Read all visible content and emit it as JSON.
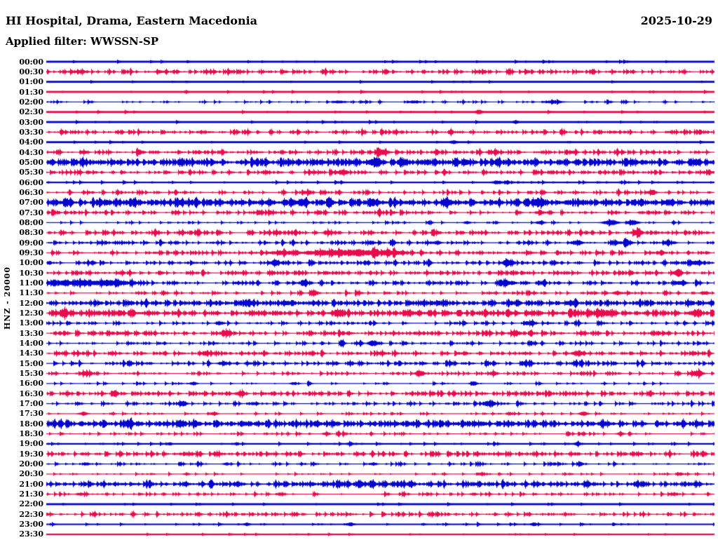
{
  "header": {
    "station_title": "HI Hospital, Drama, Eastern Macedonia",
    "date": "2025-10-29",
    "filter_label": "Applied filter: WWSSN-SP"
  },
  "axis": {
    "channel_label": "HNZ - 20000"
  },
  "colors": {
    "background": "#ffffff",
    "text": "#000000",
    "trace_blue": "#0202cf",
    "trace_red": "#e80a4a"
  },
  "chart_data": {
    "type": "helicorder_seismogram",
    "minutes_per_row": 30,
    "first_row_time": "00:00",
    "last_row_time": "23:30",
    "row_color_legend": {
      "B": "blue",
      "R": "red"
    },
    "row_fields": {
      "t": "start time",
      "c": "trace color",
      "b": "baseline half-thickness px",
      "d": "noise spike density 0-1",
      "s": "spike amplitude px",
      "e": "bursts as [position-fraction, amplitude-px, width-fraction]"
    },
    "rows": [
      {
        "t": "00:00",
        "c": "B",
        "b": 1.4,
        "d": 0.02,
        "s": 1.0,
        "e": []
      },
      {
        "t": "00:30",
        "c": "R",
        "b": 0.6,
        "d": 0.3,
        "s": 2.0,
        "e": [
          [
            0.05,
            1.5,
            0.01
          ],
          [
            0.17,
            1.5,
            0.008
          ]
        ]
      },
      {
        "t": "01:00",
        "c": "B",
        "b": 1.4,
        "d": 0.02,
        "s": 1.0,
        "e": []
      },
      {
        "t": "01:30",
        "c": "R",
        "b": 1.4,
        "d": 0.02,
        "s": 1.0,
        "e": []
      },
      {
        "t": "02:00",
        "c": "B",
        "b": 0.55,
        "d": 0.15,
        "s": 1.6,
        "e": [
          [
            0.44,
            1.5,
            0.01
          ],
          [
            0.55,
            2.0,
            0.008
          ],
          [
            0.76,
            2.0,
            0.012
          ]
        ]
      },
      {
        "t": "02:30",
        "c": "R",
        "b": 1.4,
        "d": 0.02,
        "s": 1.0,
        "e": [
          [
            0.648,
            2.5,
            0.004
          ]
        ]
      },
      {
        "t": "03:00",
        "c": "B",
        "b": 1.4,
        "d": 0.02,
        "s": 1.0,
        "e": [
          [
            0.703,
            1.5,
            0.003
          ]
        ]
      },
      {
        "t": "03:30",
        "c": "R",
        "b": 0.6,
        "d": 0.3,
        "s": 2.0,
        "e": []
      },
      {
        "t": "04:00",
        "c": "B",
        "b": 1.4,
        "d": 0.02,
        "s": 1.0,
        "e": [
          [
            0.61,
            1.5,
            0.004
          ]
        ]
      },
      {
        "t": "04:30",
        "c": "R",
        "b": 0.6,
        "d": 0.3,
        "s": 2.0,
        "e": [
          [
            0.14,
            2.5,
            0.005
          ],
          [
            0.5,
            4.0,
            0.008
          ],
          [
            0.585,
            2.5,
            0.005
          ],
          [
            0.665,
            2.5,
            0.005
          ],
          [
            0.79,
            2.5,
            0.005
          ]
        ]
      },
      {
        "t": "05:00",
        "c": "B",
        "b": 0.9,
        "d": 0.6,
        "s": 2.4,
        "e": [
          [
            0.49,
            3.0,
            0.01
          ]
        ]
      },
      {
        "t": "05:30",
        "c": "R",
        "b": 0.6,
        "d": 0.3,
        "s": 2.0,
        "e": [
          [
            0.445,
            3.5,
            0.008
          ]
        ]
      },
      {
        "t": "06:00",
        "c": "B",
        "b": 1.1,
        "d": 0.06,
        "s": 1.4,
        "e": [
          [
            0.675,
            2.0,
            0.006
          ],
          [
            0.69,
            2.0,
            0.004
          ]
        ]
      },
      {
        "t": "06:30",
        "c": "R",
        "b": 0.6,
        "d": 0.22,
        "s": 2.0,
        "e": [
          [
            0.393,
            2.5,
            0.005
          ],
          [
            0.907,
            3.5,
            0.006
          ]
        ]
      },
      {
        "t": "07:00",
        "c": "B",
        "b": 0.9,
        "d": 0.6,
        "s": 2.4,
        "e": [
          [
            0.383,
            3.5,
            0.008
          ],
          [
            0.49,
            3.5,
            0.006
          ],
          [
            0.6,
            3.0,
            0.006
          ],
          [
            0.74,
            3.5,
            0.007
          ]
        ]
      },
      {
        "t": "07:30",
        "c": "R",
        "b": 0.6,
        "d": 0.3,
        "s": 2.0,
        "e": [
          [
            0.32,
            2.5,
            0.006
          ],
          [
            0.74,
            2.5,
            0.006
          ]
        ]
      },
      {
        "t": "08:00",
        "c": "B",
        "b": 0.6,
        "d": 0.1,
        "s": 1.6,
        "e": [
          [
            0.63,
            2.0,
            0.005
          ],
          [
            0.74,
            2.5,
            0.006
          ],
          [
            0.845,
            4.0,
            0.01
          ],
          [
            0.878,
            4.0,
            0.008
          ]
        ]
      },
      {
        "t": "08:30",
        "c": "R",
        "b": 0.6,
        "d": 0.33,
        "s": 2.0,
        "e": [
          [
            0.42,
            2.5,
            0.006
          ],
          [
            0.885,
            5.0,
            0.007
          ]
        ]
      },
      {
        "t": "09:00",
        "c": "B",
        "b": 0.6,
        "d": 0.25,
        "s": 2.0,
        "e": [
          [
            0.585,
            2.5,
            0.006
          ],
          [
            0.795,
            3.0,
            0.008
          ],
          [
            0.87,
            3.0,
            0.008
          ],
          [
            0.93,
            2.5,
            0.005
          ]
        ]
      },
      {
        "t": "09:30",
        "c": "R",
        "b": 0.6,
        "d": 0.3,
        "s": 2.0,
        "e": [
          [
            0.355,
            2.5,
            0.02
          ],
          [
            0.425,
            3.2,
            0.035
          ],
          [
            0.475,
            3.6,
            0.03
          ],
          [
            0.52,
            3.0,
            0.02
          ],
          [
            0.92,
            2.5,
            0.006
          ]
        ]
      },
      {
        "t": "10:00",
        "c": "B",
        "b": 0.6,
        "d": 0.3,
        "s": 2.0,
        "e": [
          [
            0.34,
            2.5,
            0.006
          ],
          [
            0.69,
            5.0,
            0.006
          ],
          [
            0.975,
            3.5,
            0.008
          ]
        ]
      },
      {
        "t": "10:30",
        "c": "R",
        "b": 0.6,
        "d": 0.33,
        "s": 2.0,
        "e": [
          [
            0.42,
            2.5,
            0.005
          ],
          [
            0.945,
            3.5,
            0.006
          ]
        ]
      },
      {
        "t": "11:00",
        "c": "B",
        "b": 0.6,
        "d": 0.3,
        "s": 2.0,
        "e": [
          [
            0.04,
            2.8,
            0.05
          ],
          [
            0.1,
            2.5,
            0.03
          ],
          [
            0.385,
            3.5,
            0.007
          ],
          [
            0.69,
            3.2,
            0.012
          ],
          [
            0.95,
            3.0,
            0.008
          ]
        ]
      },
      {
        "t": "11:30",
        "c": "R",
        "b": 0.6,
        "d": 0.2,
        "s": 2.0,
        "e": [
          [
            0.4,
            3.5,
            0.006
          ],
          [
            0.855,
            3.0,
            0.006
          ],
          [
            0.985,
            3.0,
            0.005
          ]
        ]
      },
      {
        "t": "12:00",
        "c": "B",
        "b": 0.7,
        "d": 0.5,
        "s": 2.2,
        "e": []
      },
      {
        "t": "12:30",
        "c": "R",
        "b": 0.7,
        "d": 0.5,
        "s": 2.2,
        "e": [
          [
            0.025,
            3.5,
            0.008
          ],
          [
            0.44,
            3.5,
            0.008
          ],
          [
            0.835,
            4.0,
            0.01
          ],
          [
            0.97,
            3.0,
            0.006
          ]
        ]
      },
      {
        "t": "13:00",
        "c": "B",
        "b": 0.6,
        "d": 0.2,
        "s": 2.0,
        "e": [
          [
            0.26,
            2.5,
            0.006
          ],
          [
            0.725,
            3.0,
            0.007
          ]
        ]
      },
      {
        "t": "13:30",
        "c": "R",
        "b": 0.6,
        "d": 0.35,
        "s": 2.0,
        "e": [
          [
            0.27,
            3.0,
            0.007
          ],
          [
            0.7,
            2.5,
            0.007
          ]
        ]
      },
      {
        "t": "14:00",
        "c": "B",
        "b": 0.6,
        "d": 0.2,
        "s": 2.0,
        "e": [
          [
            0.49,
            4.0,
            0.007
          ]
        ]
      },
      {
        "t": "14:30",
        "c": "R",
        "b": 0.6,
        "d": 0.3,
        "s": 2.0,
        "e": [
          [
            0.24,
            3.0,
            0.007
          ],
          [
            0.795,
            3.5,
            0.007
          ]
        ]
      },
      {
        "t": "15:00",
        "c": "B",
        "b": 0.6,
        "d": 0.3,
        "s": 2.0,
        "e": [
          [
            0.265,
            3.0,
            0.007
          ],
          [
            0.715,
            2.5,
            0.006
          ]
        ]
      },
      {
        "t": "15:30",
        "c": "R",
        "b": 0.6,
        "d": 0.2,
        "s": 2.0,
        "e": [
          [
            0.06,
            2.5,
            0.008
          ],
          [
            0.56,
            3.0,
            0.007
          ],
          [
            0.67,
            2.5,
            0.005
          ],
          [
            0.975,
            4.5,
            0.008
          ]
        ]
      },
      {
        "t": "16:00",
        "c": "B",
        "b": 0.6,
        "d": 0.1,
        "s": 1.6,
        "e": [
          [
            0.22,
            2.5,
            0.005
          ],
          [
            0.37,
            2.0,
            0.004
          ],
          [
            0.64,
            3.0,
            0.005
          ]
        ]
      },
      {
        "t": "16:30",
        "c": "R",
        "b": 0.6,
        "d": 0.35,
        "s": 2.0,
        "e": [
          [
            0.29,
            3.0,
            0.007
          ]
        ]
      },
      {
        "t": "17:00",
        "c": "B",
        "b": 0.6,
        "d": 0.2,
        "s": 2.0,
        "e": [
          [
            0.205,
            2.5,
            0.006
          ],
          [
            0.665,
            5.0,
            0.007
          ]
        ]
      },
      {
        "t": "17:30",
        "c": "R",
        "b": 0.6,
        "d": 0.1,
        "s": 1.6,
        "e": [
          [
            0.055,
            2.5,
            0.006
          ],
          [
            0.25,
            2.0,
            0.005
          ],
          [
            0.805,
            3.0,
            0.006
          ]
        ]
      },
      {
        "t": "18:00",
        "c": "B",
        "b": 0.9,
        "d": 0.55,
        "s": 2.4,
        "e": []
      },
      {
        "t": "18:30",
        "c": "R",
        "b": 0.6,
        "d": 0.14,
        "s": 1.8,
        "e": [
          [
            0.42,
            2.0,
            0.005
          ],
          [
            0.86,
            2.5,
            0.005
          ]
        ]
      },
      {
        "t": "19:00",
        "c": "B",
        "b": 1.1,
        "d": 0.05,
        "s": 1.4,
        "e": [
          [
            0.185,
            1.5,
            0.003
          ],
          [
            0.285,
            1.5,
            0.003
          ],
          [
            0.455,
            1.8,
            0.004
          ],
          [
            0.795,
            1.8,
            0.004
          ]
        ]
      },
      {
        "t": "19:30",
        "c": "R",
        "b": 0.6,
        "d": 0.38,
        "s": 2.0,
        "e": []
      },
      {
        "t": "20:00",
        "c": "B",
        "b": 0.6,
        "d": 0.15,
        "s": 1.8,
        "e": [
          [
            0.06,
            2.0,
            0.005
          ],
          [
            0.27,
            2.0,
            0.005
          ],
          [
            0.49,
            2.0,
            0.005
          ],
          [
            0.8,
            2.0,
            0.005
          ]
        ]
      },
      {
        "t": "20:30",
        "c": "R",
        "b": 0.6,
        "d": 0.08,
        "s": 1.6,
        "e": [
          [
            0.21,
            1.8,
            0.004
          ],
          [
            0.65,
            2.2,
            0.005
          ],
          [
            0.95,
            1.8,
            0.004
          ]
        ]
      },
      {
        "t": "21:00",
        "c": "B",
        "b": 0.8,
        "d": 0.45,
        "s": 2.2,
        "e": [
          [
            0.47,
            2.5,
            0.006
          ]
        ]
      },
      {
        "t": "21:30",
        "c": "R",
        "b": 0.6,
        "d": 0.14,
        "s": 1.8,
        "e": [
          [
            0.05,
            2.0,
            0.005
          ],
          [
            0.35,
            2.0,
            0.005
          ],
          [
            0.64,
            2.0,
            0.005
          ],
          [
            0.94,
            2.5,
            0.005
          ]
        ]
      },
      {
        "t": "22:00",
        "c": "B",
        "b": 1.4,
        "d": 0.02,
        "s": 1.0,
        "e": []
      },
      {
        "t": "22:30",
        "c": "R",
        "b": 0.6,
        "d": 0.25,
        "s": 2.0,
        "e": []
      },
      {
        "t": "23:00",
        "c": "B",
        "b": 1.0,
        "d": 0.06,
        "s": 1.4,
        "e": [
          [
            0.3,
            1.8,
            0.004
          ],
          [
            0.455,
            2.0,
            0.005
          ],
          [
            0.73,
            1.8,
            0.004
          ]
        ]
      },
      {
        "t": "23:30",
        "c": "R",
        "b": 1.1,
        "d": 0.02,
        "s": 1.0,
        "e": []
      }
    ]
  }
}
